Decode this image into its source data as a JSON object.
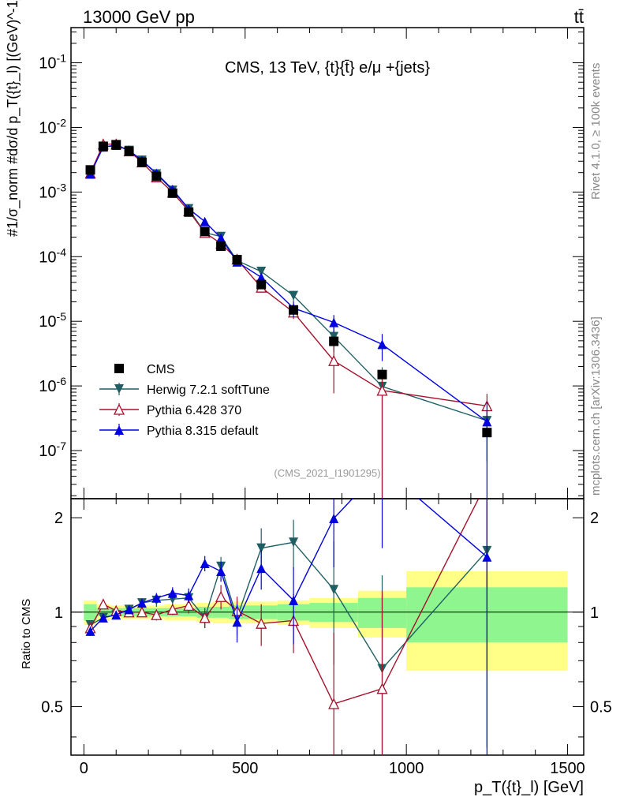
{
  "header": {
    "left": "13000 GeV pp",
    "right": "tt̄"
  },
  "side_labels": {
    "top": "Rivet 4.1.0, ≥ 100k events",
    "bottom": "mcplots.cern.ch [arXiv:1306.3436]"
  },
  "colors": {
    "cms": "#000000",
    "herwig": "#1f5f63",
    "pythia6": "#a5122d",
    "pythia8": "#0000e0",
    "band_inner": "#8ff58f",
    "band_outer": "#ffff88"
  },
  "chart_data": {
    "type": "scatter",
    "title": "CMS, 13 TeV, {t}{t̄} e/μ +{jets}",
    "watermark": "(CMS_2021_I1901295)",
    "ylabel_main": "#1/σ_norm #dσ/d p_T({t}_l) [(GeV)^-1]",
    "ylabel_ratio": "Ratio to CMS",
    "xlabel": "p_T({t}_l) [GeV]",
    "xlim": [
      -40,
      1550
    ],
    "ylim_main": [
      1.8e-08,
      0.35
    ],
    "ylim_ratio": [
      0.35,
      2.3
    ],
    "x_ticks": [
      0,
      500,
      1000,
      1500
    ],
    "x_tick_labels": [
      "0",
      "500",
      "1000",
      "1500"
    ],
    "y_ticks_main": [
      1e-07,
      1e-06,
      1e-05,
      0.0001,
      0.001,
      0.01,
      0.1
    ],
    "y_tick_labels_main": [
      "10^-7",
      "10^-6",
      "10^-5",
      "10^-4",
      "10^-3",
      "10^-2",
      "10^-1"
    ],
    "y_ticks_ratio": [
      0.5,
      1,
      2
    ],
    "y_tick_labels_ratio": [
      "0.5",
      "1",
      "2"
    ],
    "bins": [
      {
        "lo": 0,
        "hi": 40,
        "stat": 0.06,
        "tot": 0.09
      },
      {
        "lo": 40,
        "hi": 80,
        "stat": 0.03,
        "tot": 0.06
      },
      {
        "lo": 80,
        "hi": 120,
        "stat": 0.03,
        "tot": 0.05
      },
      {
        "lo": 120,
        "hi": 160,
        "stat": 0.03,
        "tot": 0.05
      },
      {
        "lo": 160,
        "hi": 200,
        "stat": 0.03,
        "tot": 0.05
      },
      {
        "lo": 200,
        "hi": 250,
        "stat": 0.03,
        "tot": 0.05
      },
      {
        "lo": 250,
        "hi": 300,
        "stat": 0.03,
        "tot": 0.06
      },
      {
        "lo": 300,
        "hi": 350,
        "stat": 0.03,
        "tot": 0.06
      },
      {
        "lo": 350,
        "hi": 400,
        "stat": 0.04,
        "tot": 0.07
      },
      {
        "lo": 400,
        "hi": 450,
        "stat": 0.04,
        "tot": 0.08
      },
      {
        "lo": 450,
        "hi": 500,
        "stat": 0.05,
        "tot": 0.08
      },
      {
        "lo": 500,
        "hi": 600,
        "stat": 0.05,
        "tot": 0.08
      },
      {
        "lo": 600,
        "hi": 700,
        "stat": 0.06,
        "tot": 0.09
      },
      {
        "lo": 700,
        "hi": 850,
        "stat": 0.07,
        "tot": 0.11
      },
      {
        "lo": 850,
        "hi": 1000,
        "stat": 0.11,
        "tot": 0.17
      },
      {
        "lo": 1000,
        "hi": 1500,
        "stat": 0.2,
        "tot": 0.35
      }
    ],
    "series": [
      {
        "name": "CMS",
        "key": "cms",
        "marker": "square",
        "x": [
          20,
          60,
          100,
          140,
          180,
          225,
          275,
          325,
          375,
          425,
          475,
          550,
          650,
          775,
          925,
          1250
        ],
        "y": [
          0.0022,
          0.0051,
          0.0054,
          0.0043,
          0.0029,
          0.00175,
          0.00096,
          0.00049,
          0.000245,
          0.000145,
          9e-05,
          3.7e-05,
          1.5e-05,
          4.9e-06,
          1.5e-06,
          1.9e-07
        ]
      },
      {
        "name": "Herwig 7.2.1 softTune",
        "key": "herwig",
        "marker": "tri-down",
        "x": [
          20,
          60,
          100,
          140,
          180,
          225,
          275,
          325,
          375,
          425,
          475,
          550,
          650,
          775,
          925,
          1250
        ],
        "y": [
          0.002,
          0.0049,
          0.0053,
          0.0044,
          0.0031,
          0.0019,
          0.00106,
          0.00055,
          0.000235,
          0.000205,
          8.7e-05,
          5.9e-05,
          2.5e-05,
          5.8e-06,
          9.8e-07,
          2.9e-07
        ],
        "ratio": [
          0.91,
          0.96,
          0.98,
          1.02,
          1.07,
          1.09,
          1.1,
          1.11,
          0.96,
          1.4,
          0.96,
          1.6,
          1.67,
          1.18,
          0.66,
          1.57
        ],
        "ratio_err": [
          0.03,
          0.02,
          0.03,
          0.03,
          0.03,
          0.05,
          0.05,
          0.06,
          0.07,
          0.1,
          0.12,
          0.25,
          0.3,
          0.5,
          0.65,
          1.2
        ]
      },
      {
        "name": "Pythia 6.428 370",
        "key": "pythia6",
        "marker": "tri-up-open",
        "x": [
          20,
          60,
          100,
          140,
          180,
          225,
          275,
          325,
          375,
          425,
          475,
          550,
          650,
          775,
          925,
          1250
        ],
        "y": [
          0.00195,
          0.0055,
          0.0055,
          0.0043,
          0.0029,
          0.0017,
          0.00099,
          0.00051,
          0.000235,
          0.00016,
          9.1e-05,
          3.35e-05,
          1.38e-05,
          2.45e-06,
          8.5e-07,
          4.9e-07
        ],
        "ratio": [
          0.89,
          1.06,
          1.01,
          1.0,
          1.0,
          0.98,
          1.02,
          1.05,
          0.96,
          1.12,
          1.01,
          0.92,
          0.94,
          0.51,
          0.57,
          2.6
        ],
        "ratio_err": [
          0.03,
          0.03,
          0.03,
          0.03,
          0.03,
          0.04,
          0.04,
          0.06,
          0.07,
          0.1,
          0.11,
          0.14,
          0.2,
          0.35,
          0.6,
          1.4
        ]
      },
      {
        "name": "Pythia 8.315 default",
        "key": "pythia8",
        "marker": "tri-up",
        "x": [
          20,
          60,
          100,
          140,
          180,
          225,
          275,
          325,
          375,
          425,
          475,
          550,
          650,
          775,
          925,
          1250
        ],
        "y": [
          0.0019,
          0.005,
          0.0053,
          0.0044,
          0.0031,
          0.00195,
          0.0011,
          0.00055,
          0.00035,
          0.000195,
          8.3e-05,
          4.8e-05,
          1.6e-05,
          9.6e-06,
          4.4e-06,
          2.8e-07
        ],
        "ratio": [
          0.87,
          0.96,
          0.98,
          1.02,
          1.07,
          1.11,
          1.15,
          1.13,
          1.43,
          1.35,
          0.93,
          1.38,
          1.09,
          1.99,
          2.9,
          1.5
        ],
        "ratio_err": [
          0.03,
          0.02,
          0.03,
          0.03,
          0.03,
          0.04,
          0.05,
          0.06,
          0.08,
          0.1,
          0.13,
          0.2,
          0.3,
          0.6,
          1.3,
          1.5
        ]
      }
    ],
    "legend": [
      "CMS",
      "Herwig 7.2.1 softTune",
      "Pythia 6.428 370",
      "Pythia 8.315 default"
    ]
  }
}
